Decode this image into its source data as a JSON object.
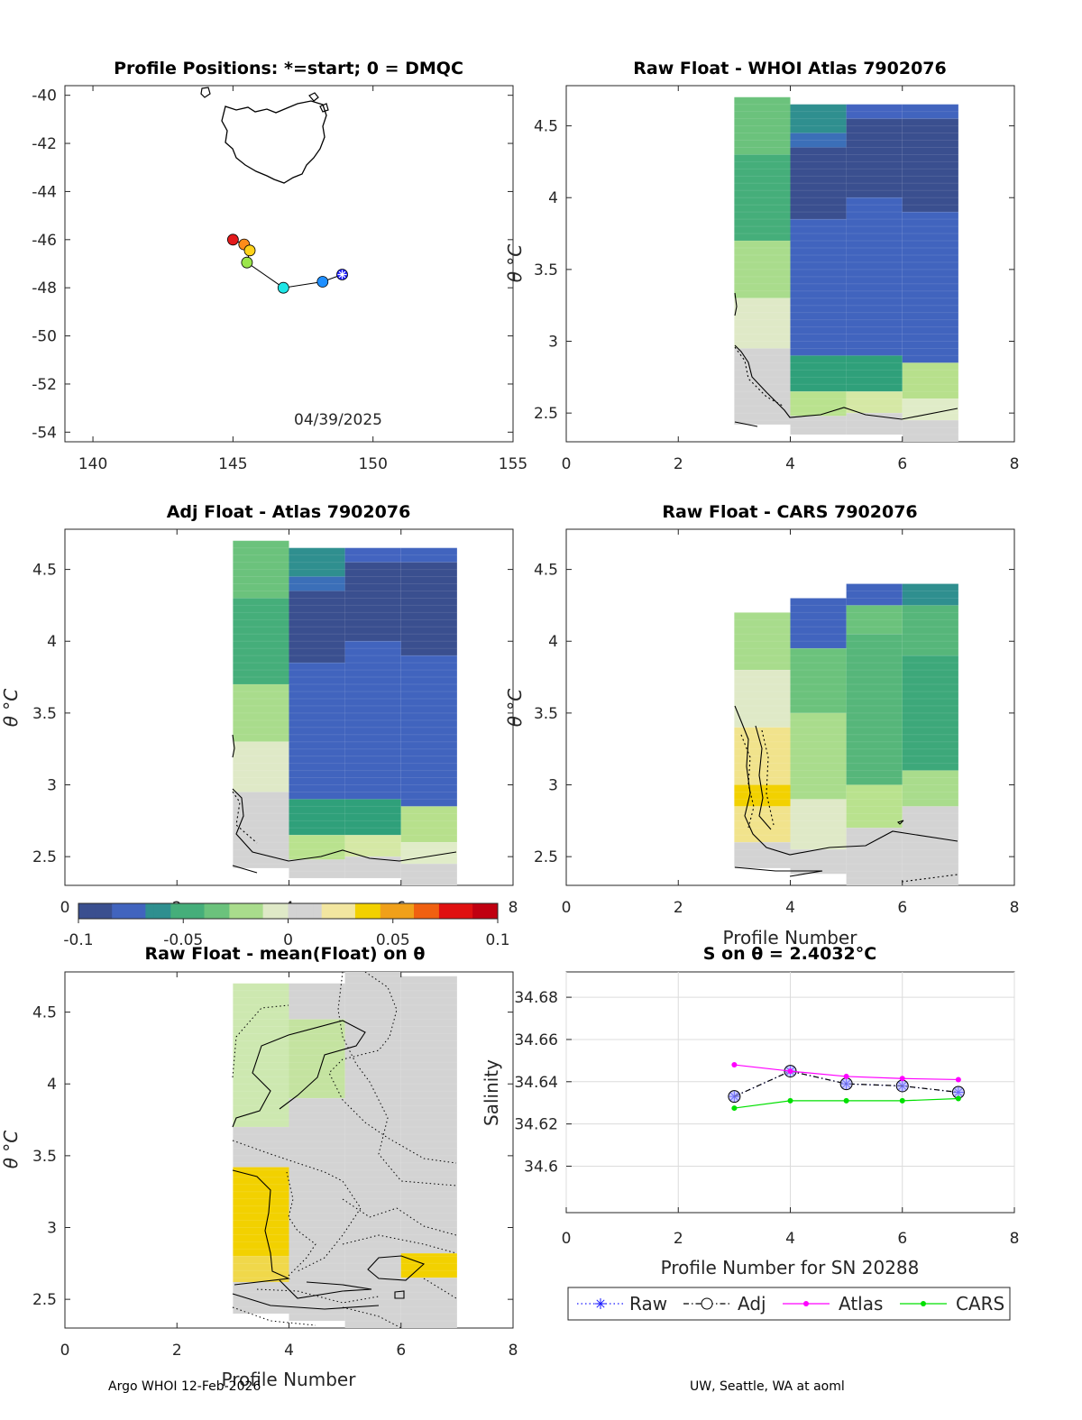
{
  "footer": {
    "left": "Argo WHOI 12-Feb-2026",
    "right": "UW, Seattle, WA at aoml"
  },
  "chart_data": [
    {
      "id": "map",
      "type": "scatter",
      "title": "Profile Positions: *=start; 0 = DMQC",
      "xlim": [
        139,
        155
      ],
      "ylim": [
        -54.4,
        -39.6
      ],
      "xticks": [
        140,
        145,
        150,
        155
      ],
      "yticks": [
        -40,
        -42,
        -44,
        -46,
        -48,
        -50,
        -52,
        -54
      ],
      "date_text": "04/39/2025",
      "track": [
        {
          "lon": 145.0,
          "lat": -46.0,
          "color": "#e31a1c"
        },
        {
          "lon": 145.4,
          "lat": -46.2,
          "color": "#ff8c1a"
        },
        {
          "lon": 145.6,
          "lat": -46.45,
          "color": "#ffd21a"
        },
        {
          "lon": 145.5,
          "lat": -46.95,
          "color": "#9be64b"
        },
        {
          "lon": 146.8,
          "lat": -48.0,
          "color": "#1ee6e6"
        },
        {
          "lon": 148.2,
          "lat": -47.75,
          "color": "#1f8fff"
        },
        {
          "lon": 148.9,
          "lat": -47.45,
          "color": "#1a1aff"
        }
      ]
    },
    {
      "id": "raw_whoi",
      "type": "heatmap",
      "title": "Raw Float - WHOI Atlas  7902076",
      "xlim": [
        0,
        8
      ],
      "ylim": [
        2.3,
        4.78
      ],
      "xticks": [
        0,
        2,
        4,
        6,
        8
      ],
      "yticks": [
        2.5,
        3,
        3.5,
        4,
        4.5
      ],
      "ylabel": "",
      "columns": [
        {
          "x0": 3,
          "x1": 4,
          "ybot": 2.42,
          "ytop": 4.7,
          "bands": [
            [
              4.3,
              "#6bc27c"
            ],
            [
              3.7,
              "#45ae7a"
            ],
            [
              3.3,
              "#a9dc8c"
            ],
            [
              2.95,
              "#dfe9c7"
            ],
            [
              2.42,
              "#d3d3d3"
            ]
          ]
        },
        {
          "x0": 4,
          "x1": 5,
          "ybot": 2.35,
          "ytop": 4.65,
          "bands": [
            [
              4.45,
              "#2f8f8f"
            ],
            [
              4.35,
              "#3b6fb8"
            ],
            [
              3.85,
              "#3a4f8f"
            ],
            [
              2.9,
              "#4164be"
            ],
            [
              2.65,
              "#2fa07a"
            ],
            [
              2.48,
              "#b9e28e"
            ],
            [
              2.35,
              "#d3d3d3"
            ]
          ]
        },
        {
          "x0": 5,
          "x1": 6,
          "ybot": 2.35,
          "ytop": 4.65,
          "bands": [
            [
              4.55,
              "#4364c0"
            ],
            [
              4.0,
              "#3a4f8f"
            ],
            [
              2.9,
              "#4164be"
            ],
            [
              2.65,
              "#2fa07a"
            ],
            [
              2.5,
              "#d5e8a5"
            ],
            [
              2.35,
              "#d3d3d3"
            ]
          ]
        },
        {
          "x0": 6,
          "x1": 7,
          "ybot": 2.3,
          "ytop": 4.65,
          "bands": [
            [
              4.55,
              "#4164be"
            ],
            [
              3.9,
              "#3a4f8f"
            ],
            [
              2.85,
              "#4164be"
            ],
            [
              2.6,
              "#b7e08c"
            ],
            [
              2.45,
              "#e0ecc8"
            ],
            [
              2.3,
              "#d3d3d3"
            ]
          ]
        }
      ]
    },
    {
      "id": "adj_atlas",
      "type": "heatmap",
      "title": "Adj Float - Atlas  7902076",
      "xlim": [
        0,
        8
      ],
      "ylim": [
        2.3,
        4.78
      ],
      "xticks": [
        0,
        2,
        4,
        6,
        8
      ],
      "yticks": [
        2.5,
        3,
        3.5,
        4,
        4.5
      ],
      "ylabel": "θ °C",
      "columns": [
        {
          "x0": 3,
          "x1": 4,
          "ybot": 2.42,
          "ytop": 4.7,
          "bands": [
            [
              4.3,
              "#6bc27c"
            ],
            [
              3.7,
              "#45ae7a"
            ],
            [
              3.3,
              "#a9dc8c"
            ],
            [
              2.95,
              "#dfe9c7"
            ],
            [
              2.42,
              "#d3d3d3"
            ]
          ]
        },
        {
          "x0": 4,
          "x1": 5,
          "ybot": 2.35,
          "ytop": 4.65,
          "bands": [
            [
              4.45,
              "#2f8f8f"
            ],
            [
              4.35,
              "#3b6fb8"
            ],
            [
              3.85,
              "#3a4f8f"
            ],
            [
              2.9,
              "#4164be"
            ],
            [
              2.65,
              "#2fa07a"
            ],
            [
              2.48,
              "#b9e28e"
            ],
            [
              2.35,
              "#d3d3d3"
            ]
          ]
        },
        {
          "x0": 5,
          "x1": 6,
          "ybot": 2.35,
          "ytop": 4.65,
          "bands": [
            [
              4.55,
              "#4364c0"
            ],
            [
              4.0,
              "#3a4f8f"
            ],
            [
              2.9,
              "#4164be"
            ],
            [
              2.65,
              "#2fa07a"
            ],
            [
              2.5,
              "#d5e8a5"
            ],
            [
              2.35,
              "#d3d3d3"
            ]
          ]
        },
        {
          "x0": 6,
          "x1": 7,
          "ybot": 2.3,
          "ytop": 4.65,
          "bands": [
            [
              4.55,
              "#4164be"
            ],
            [
              3.9,
              "#3a4f8f"
            ],
            [
              2.85,
              "#4164be"
            ],
            [
              2.6,
              "#b7e08c"
            ],
            [
              2.45,
              "#e0ecc8"
            ],
            [
              2.3,
              "#d3d3d3"
            ]
          ]
        }
      ]
    },
    {
      "id": "raw_cars",
      "type": "heatmap",
      "title": "Raw Float - CARS  7902076",
      "xlim": [
        0,
        8
      ],
      "ylim": [
        2.3,
        4.78
      ],
      "xticks": [
        0,
        2,
        4,
        6,
        8
      ],
      "yticks": [
        2.5,
        3,
        3.5,
        4,
        4.5
      ],
      "xlabel": "Profile Number",
      "columns": [
        {
          "x0": 3,
          "x1": 4,
          "ybot": 2.42,
          "ytop": 4.2,
          "bands": [
            [
              3.8,
              "#a8dc8c"
            ],
            [
              3.4,
              "#dfe9c7"
            ],
            [
              3.0,
              "#f1e38c"
            ],
            [
              2.85,
              "#f2d100"
            ],
            [
              2.6,
              "#f1e38c"
            ],
            [
              2.42,
              "#d3d3d3"
            ]
          ]
        },
        {
          "x0": 4,
          "x1": 5,
          "ybot": 2.38,
          "ytop": 4.3,
          "bands": [
            [
              3.95,
              "#4164be"
            ],
            [
              3.5,
              "#6bc27c"
            ],
            [
              2.9,
              "#a9dc8c"
            ],
            [
              2.55,
              "#dfe9c7"
            ],
            [
              2.38,
              "#d3d3d3"
            ]
          ]
        },
        {
          "x0": 5,
          "x1": 6,
          "ybot": 2.3,
          "ytop": 4.4,
          "bands": [
            [
              4.25,
              "#4164be"
            ],
            [
              4.05,
              "#6bc27c"
            ],
            [
              3.0,
              "#56b67a"
            ],
            [
              2.7,
              "#b9e28e"
            ],
            [
              2.3,
              "#d3d3d3"
            ]
          ]
        },
        {
          "x0": 6,
          "x1": 7,
          "ybot": 2.3,
          "ytop": 4.4,
          "bands": [
            [
              4.25,
              "#2f8f8f"
            ],
            [
              3.9,
              "#56b67a"
            ],
            [
              3.1,
              "#3da87a"
            ],
            [
              2.85,
              "#a9dc8c"
            ],
            [
              2.3,
              "#d3d3d3"
            ]
          ]
        }
      ]
    },
    {
      "id": "raw_mean",
      "type": "heatmap",
      "title": "Raw Float - mean(Float) on θ",
      "xlim": [
        0,
        8
      ],
      "ylim": [
        2.3,
        4.78
      ],
      "xticks": [
        0,
        2,
        4,
        6,
        8
      ],
      "yticks": [
        2.5,
        3,
        3.5,
        4,
        4.5
      ],
      "xlabel": "Profile Number",
      "ylabel": "θ °C",
      "columns": [
        {
          "x0": 3,
          "x1": 4,
          "ybot": 2.4,
          "ytop": 4.7,
          "bands": [
            [
              3.7,
              "#cde8b0"
            ],
            [
              3.42,
              "#d3d3d3"
            ],
            [
              2.8,
              "#f2d100"
            ],
            [
              2.62,
              "#f0d84a"
            ],
            [
              2.4,
              "#d3d3d3"
            ]
          ]
        },
        {
          "x0": 4,
          "x1": 5,
          "ybot": 2.35,
          "ytop": 4.7,
          "bands": [
            [
              4.45,
              "#d3d3d3"
            ],
            [
              3.9,
              "#c4e3a0"
            ],
            [
              2.35,
              "#d3d3d3"
            ]
          ]
        },
        {
          "x0": 5,
          "x1": 6,
          "ybot": 2.3,
          "ytop": 4.8,
          "bands": [
            [
              2.3,
              "#d3d3d3"
            ]
          ]
        },
        {
          "x0": 6,
          "x1": 7,
          "ybot": 2.3,
          "ytop": 4.75,
          "bands": [
            [
              2.82,
              "#d3d3d3"
            ],
            [
              2.65,
              "#f2d100"
            ],
            [
              2.3,
              "#d3d3d3"
            ]
          ]
        }
      ]
    },
    {
      "id": "salinity",
      "type": "line",
      "title": "S on θ = 2.4032°C",
      "xlabel": "Profile Number for SN 20288",
      "ylabel": "Salinity",
      "xlim": [
        0,
        8
      ],
      "ylim": [
        34.578,
        34.692
      ],
      "xticks": [
        0,
        2,
        4,
        6,
        8
      ],
      "yticks": [
        34.6,
        34.62,
        34.64,
        34.66,
        34.68
      ],
      "x": [
        3,
        4,
        5,
        6,
        7
      ],
      "series": [
        {
          "name": "Raw",
          "values": [
            34.633,
            34.645,
            34.639,
            34.638,
            34.635
          ],
          "color": "#1a1aff"
        },
        {
          "name": "Adj",
          "values": [
            34.633,
            34.645,
            34.639,
            34.638,
            34.635
          ],
          "color": "#000000"
        },
        {
          "name": "Atlas",
          "values": [
            34.648,
            34.645,
            34.6425,
            34.6415,
            34.641
          ],
          "color": "#ff00ff"
        },
        {
          "name": "CARS",
          "values": [
            34.6275,
            34.631,
            34.631,
            34.631,
            34.632
          ],
          "color": "#00e000"
        }
      ]
    }
  ],
  "colorbar": {
    "ticks": [
      "-0.1",
      "-0.05",
      "0",
      "0.05",
      "0.1"
    ],
    "colors": [
      "#3a4f8f",
      "#4164be",
      "#2f8f8f",
      "#45ae7a",
      "#6bc27c",
      "#a9dc8c",
      "#dfe9c7",
      "#d3d3d3",
      "#f2e6a0",
      "#f2d100",
      "#f0a01a",
      "#f06010",
      "#e01010",
      "#c00010"
    ]
  }
}
